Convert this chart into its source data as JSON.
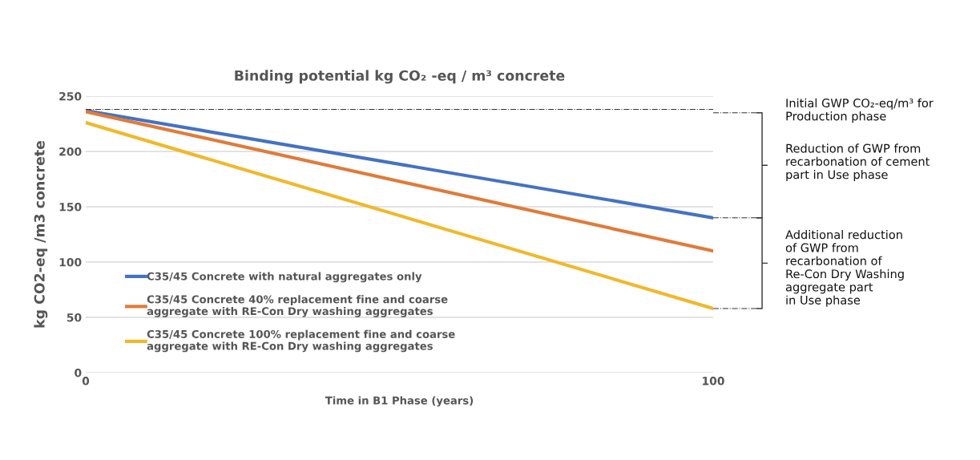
{
  "chart_data": {
    "type": "line",
    "title": "Binding potential kg CO₂ -eq / m³ concrete",
    "xlabel": "Time in B1 Phase (years)",
    "ylabel": "kg CO2-eq /m3 concrete",
    "x": [
      0,
      100
    ],
    "series": [
      {
        "name": "C35/45 Concrete with natural aggregates only",
        "color": "#4472c4",
        "values": [
          237,
          140
        ]
      },
      {
        "name": "C35/45 Concrete 40% replacement fine and coarse\naggregate with RE-Con Dry washing aggregates",
        "color": "#e07b39",
        "values": [
          236,
          110
        ]
      },
      {
        "name": "C35/45 Concrete 100% replacement fine and coarse\naggregate with RE-Con Dry washing aggregates",
        "color": "#f0b92b",
        "values": [
          226,
          58
        ]
      }
    ],
    "xlim": [
      0,
      100
    ],
    "xticks": [
      0,
      100
    ],
    "ylim": [
      0,
      250
    ],
    "yticks": [
      0,
      50,
      100,
      150,
      200,
      250
    ],
    "ref_lines": [
      {
        "axis": "y",
        "value": 238,
        "label": null,
        "color": "#333333",
        "line_style": "dashed"
      }
    ],
    "annotations": [
      "Initial GWP CO₂-eq/m³ for\nProduction phase",
      "Reduction of GWP from\nrecarbonation of cement\npart in Use phase",
      "Additional reduction\nof GWP from\nrecarbonation of\nRe-Con Dry Washing\naggregate part\nin Use phase"
    ],
    "grid": "y",
    "legend": "bottom left",
    "marker": "none",
    "line_style": "solid"
  }
}
